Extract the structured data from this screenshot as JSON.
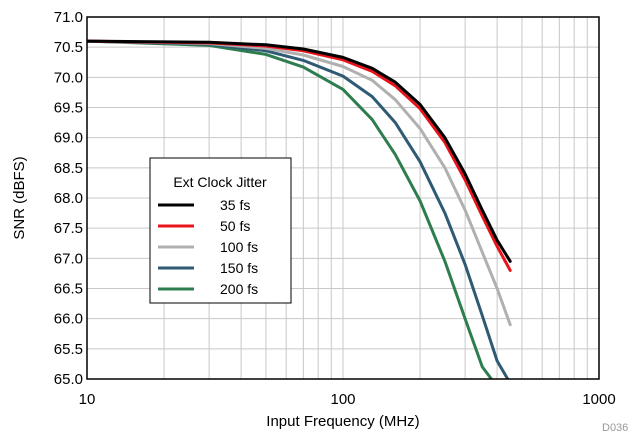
{
  "chart_data": {
    "type": "line",
    "xlabel": "Input Frequency (MHz)",
    "ylabel": "SNR (dBFS)",
    "x_scale": "log",
    "xlim": [
      10,
      1000
    ],
    "ylim": [
      65.0,
      71.0
    ],
    "x_ticks": [
      "10",
      "100",
      "1000"
    ],
    "y_ticks": [
      "65.0",
      "65.5",
      "66.0",
      "66.5",
      "67.0",
      "67.5",
      "68.0",
      "68.5",
      "69.0",
      "69.5",
      "70.0",
      "70.5",
      "71.0"
    ],
    "grid": true,
    "legend": {
      "title": "Ext Clock Jitter",
      "placement": "center-left"
    },
    "figure_code": "D036",
    "series": [
      {
        "name": "35 fs",
        "color": "#000000",
        "x": [
          10,
          30,
          50,
          70,
          100,
          130,
          160,
          200,
          250,
          300,
          350,
          400,
          450
        ],
        "y": [
          70.6,
          70.58,
          70.54,
          70.47,
          70.33,
          70.15,
          69.92,
          69.55,
          69.0,
          68.4,
          67.8,
          67.3,
          66.95
        ]
      },
      {
        "name": "50 fs",
        "color": "#e8141c",
        "x": [
          10,
          30,
          50,
          70,
          100,
          130,
          160,
          200,
          250,
          300,
          350,
          400,
          450
        ],
        "y": [
          70.6,
          70.57,
          70.52,
          70.44,
          70.29,
          70.1,
          69.86,
          69.48,
          68.92,
          68.3,
          67.7,
          67.2,
          66.8
        ]
      },
      {
        "name": "100 fs",
        "color": "#b0b0b0",
        "x": [
          10,
          30,
          50,
          70,
          100,
          130,
          160,
          200,
          250,
          300,
          350,
          400,
          450
        ],
        "y": [
          70.6,
          70.56,
          70.48,
          70.37,
          70.18,
          69.95,
          69.63,
          69.15,
          68.5,
          67.8,
          67.1,
          66.5,
          65.9
        ]
      },
      {
        "name": "150 fs",
        "color": "#2e5b73",
        "x": [
          10,
          30,
          50,
          70,
          100,
          130,
          160,
          200,
          250,
          300,
          350,
          400,
          440
        ],
        "y": [
          70.6,
          70.55,
          70.44,
          70.28,
          70.02,
          69.68,
          69.25,
          68.6,
          67.75,
          66.9,
          66.05,
          65.3,
          65.0
        ]
      },
      {
        "name": "200 fs",
        "color": "#2e7d4f",
        "x": [
          10,
          30,
          50,
          70,
          100,
          130,
          160,
          200,
          250,
          300,
          350,
          380
        ],
        "y": [
          70.6,
          70.53,
          70.38,
          70.17,
          69.8,
          69.3,
          68.72,
          67.95,
          66.95,
          66.0,
          65.2,
          65.0
        ]
      }
    ]
  }
}
